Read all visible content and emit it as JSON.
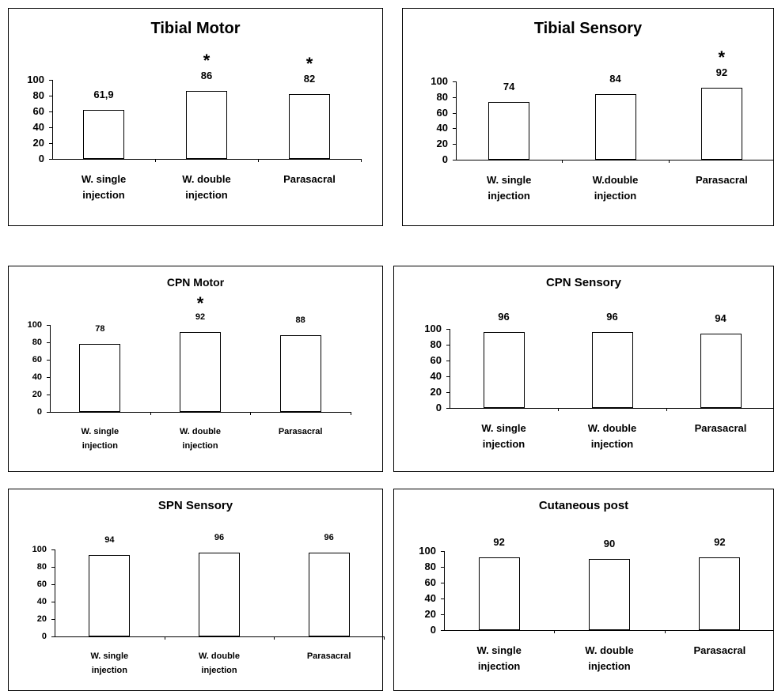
{
  "chart_data": [
    {
      "type": "bar",
      "title": "Tibial Motor",
      "categories": [
        "W. single\ninjection",
        "W. double\ninjection",
        "Parasacral"
      ],
      "values": [
        61.9,
        86,
        82
      ],
      "value_labels": [
        "61,9",
        "86",
        "82"
      ],
      "significance": [
        null,
        "*",
        "*"
      ],
      "color": "#ffffff",
      "ylim": [
        0,
        100
      ],
      "yticks": [
        0,
        20,
        40,
        60,
        80,
        100
      ],
      "grid": false
    },
    {
      "type": "bar",
      "title": "Tibial Sensory",
      "categories": [
        "W. single\ninjection",
        "W.double\ninjection",
        "Parasacral"
      ],
      "values": [
        74,
        84,
        92
      ],
      "significance": [
        null,
        null,
        "*"
      ],
      "color": "#ffffff",
      "ylim": [
        0,
        100
      ],
      "yticks": [
        0,
        20,
        40,
        60,
        80,
        100
      ],
      "grid": false
    },
    {
      "type": "bar",
      "title": "CPN Motor",
      "categories": [
        "W. single\ninjection",
        "W. double\ninjection",
        "Parasacral"
      ],
      "values": [
        78,
        92,
        88
      ],
      "significance": [
        null,
        "*",
        null
      ],
      "color": "#ffffff",
      "ylim": [
        0,
        100
      ],
      "yticks": [
        0,
        20,
        40,
        60,
        80,
        100
      ],
      "grid": false
    },
    {
      "type": "bar",
      "title": "CPN Sensory",
      "categories": [
        "W. single\ninjection",
        "W. double\ninjection",
        "Parasacral"
      ],
      "values": [
        96,
        96,
        94
      ],
      "color": "#ffffff",
      "ylim": [
        0,
        100
      ],
      "yticks": [
        0,
        20,
        40,
        60,
        80,
        100
      ],
      "grid": false
    },
    {
      "type": "bar",
      "title": "SPN Sensory",
      "categories": [
        "W. single\ninjection",
        "W. double\ninjection",
        "Parasacral"
      ],
      "values": [
        94,
        96,
        96
      ],
      "color": "#ffffff",
      "ylim": [
        0,
        100
      ],
      "yticks": [
        0,
        20,
        40,
        60,
        80,
        100
      ],
      "grid": false
    },
    {
      "type": "bar",
      "title": "Cutaneous post",
      "categories": [
        "W. single\ninjection",
        "W. double\ninjection",
        "Parasacral"
      ],
      "values": [
        92,
        90,
        92
      ],
      "color": "#ffffff",
      "ylim": [
        0,
        100
      ],
      "yticks": [
        0,
        20,
        40,
        60,
        80,
        100
      ],
      "grid": false
    }
  ]
}
